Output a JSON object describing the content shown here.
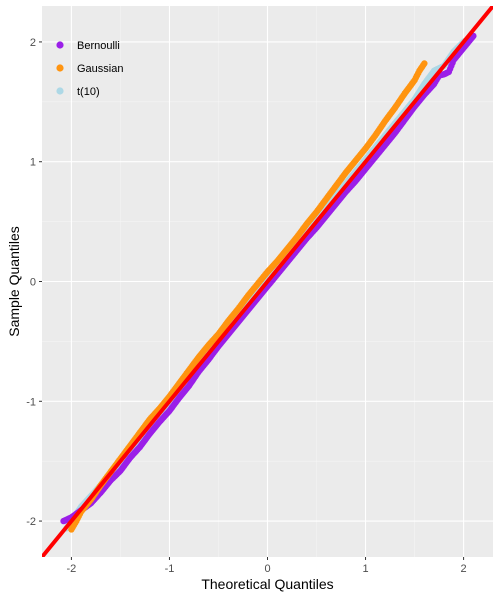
{
  "chart_data": {
    "type": "scatter",
    "title": "",
    "xlabel": "Theoretical Quantiles",
    "ylabel": "Sample Quantiles",
    "xlim": [
      -2.3,
      2.3
    ],
    "ylim": [
      -2.3,
      2.3
    ],
    "x_ticks": [
      -2,
      -1,
      0,
      1,
      2
    ],
    "y_ticks": [
      -2,
      -1,
      0,
      1,
      2
    ],
    "x_tick_labels": [
      "-2",
      "-1",
      "0",
      "1",
      "2"
    ],
    "y_tick_labels": [
      "-2",
      "-1",
      "0",
      "1",
      "2"
    ],
    "grid": true,
    "legend_position": "top-left",
    "reference_line": {
      "slope": 1,
      "intercept": 0,
      "color": "#ff0000"
    },
    "series": [
      {
        "name": "Bernoulli",
        "color": "#9b1fe8",
        "points": [
          [
            -2.08,
            -2.0
          ],
          [
            -2.0,
            -1.97
          ],
          [
            -1.9,
            -1.91
          ],
          [
            -1.8,
            -1.85
          ],
          [
            -1.7,
            -1.76
          ],
          [
            -1.6,
            -1.66
          ],
          [
            -1.5,
            -1.58
          ],
          [
            -1.4,
            -1.47
          ],
          [
            -1.3,
            -1.38
          ],
          [
            -1.2,
            -1.27
          ],
          [
            -1.1,
            -1.17
          ],
          [
            -1.0,
            -1.08
          ],
          [
            -0.9,
            -0.97
          ],
          [
            -0.8,
            -0.87
          ],
          [
            -0.7,
            -0.75
          ],
          [
            -0.6,
            -0.65
          ],
          [
            -0.5,
            -0.54
          ],
          [
            -0.4,
            -0.44
          ],
          [
            -0.3,
            -0.34
          ],
          [
            -0.2,
            -0.24
          ],
          [
            -0.1,
            -0.14
          ],
          [
            0.0,
            -0.04
          ],
          [
            0.1,
            0.06
          ],
          [
            0.2,
            0.16
          ],
          [
            0.3,
            0.26
          ],
          [
            0.4,
            0.36
          ],
          [
            0.5,
            0.45
          ],
          [
            0.6,
            0.55
          ],
          [
            0.7,
            0.65
          ],
          [
            0.8,
            0.75
          ],
          [
            0.9,
            0.84
          ],
          [
            1.0,
            0.94
          ],
          [
            1.1,
            1.04
          ],
          [
            1.2,
            1.14
          ],
          [
            1.3,
            1.24
          ],
          [
            1.4,
            1.35
          ],
          [
            1.5,
            1.46
          ],
          [
            1.6,
            1.56
          ],
          [
            1.7,
            1.65
          ],
          [
            1.75,
            1.72
          ],
          [
            1.8,
            1.73
          ],
          [
            1.85,
            1.75
          ],
          [
            1.9,
            1.85
          ],
          [
            1.95,
            1.9
          ],
          [
            2.0,
            1.95
          ],
          [
            2.1,
            2.05
          ]
        ]
      },
      {
        "name": "Gaussian",
        "color": "#ff9410",
        "points": [
          [
            -2.0,
            -2.07
          ],
          [
            -1.95,
            -2.0
          ],
          [
            -1.9,
            -1.92
          ],
          [
            -1.8,
            -1.82
          ],
          [
            -1.7,
            -1.7
          ],
          [
            -1.6,
            -1.59
          ],
          [
            -1.5,
            -1.48
          ],
          [
            -1.4,
            -1.37
          ],
          [
            -1.3,
            -1.26
          ],
          [
            -1.2,
            -1.15
          ],
          [
            -1.1,
            -1.06
          ],
          [
            -1.0,
            -0.96
          ],
          [
            -0.9,
            -0.85
          ],
          [
            -0.8,
            -0.74
          ],
          [
            -0.7,
            -0.63
          ],
          [
            -0.6,
            -0.53
          ],
          [
            -0.5,
            -0.44
          ],
          [
            -0.4,
            -0.33
          ],
          [
            -0.3,
            -0.23
          ],
          [
            -0.2,
            -0.12
          ],
          [
            -0.1,
            -0.02
          ],
          [
            0.0,
            0.08
          ],
          [
            0.1,
            0.17
          ],
          [
            0.2,
            0.27
          ],
          [
            0.3,
            0.37
          ],
          [
            0.4,
            0.48
          ],
          [
            0.5,
            0.58
          ],
          [
            0.6,
            0.69
          ],
          [
            0.7,
            0.8
          ],
          [
            0.8,
            0.91
          ],
          [
            0.9,
            1.01
          ],
          [
            1.0,
            1.11
          ],
          [
            1.1,
            1.22
          ],
          [
            1.2,
            1.34
          ],
          [
            1.3,
            1.45
          ],
          [
            1.4,
            1.57
          ],
          [
            1.5,
            1.68
          ],
          [
            1.55,
            1.76
          ],
          [
            1.6,
            1.82
          ]
        ]
      },
      {
        "name": "t(10)",
        "color": "#add8e6",
        "points": [
          [
            -2.05,
            -2.06
          ],
          [
            -1.9,
            -1.88
          ],
          [
            -1.7,
            -1.7
          ],
          [
            -1.5,
            -1.5
          ],
          [
            -1.3,
            -1.3
          ],
          [
            -1.1,
            -1.1
          ],
          [
            -0.9,
            -0.89
          ],
          [
            -0.7,
            -0.69
          ],
          [
            -0.5,
            -0.49
          ],
          [
            -0.3,
            -0.28
          ],
          [
            -0.1,
            -0.08
          ],
          [
            0.1,
            0.12
          ],
          [
            0.3,
            0.32
          ],
          [
            0.5,
            0.52
          ],
          [
            0.7,
            0.72
          ],
          [
            0.9,
            0.92
          ],
          [
            1.1,
            1.12
          ],
          [
            1.3,
            1.32
          ],
          [
            1.5,
            1.52
          ],
          [
            1.6,
            1.65
          ],
          [
            1.7,
            1.76
          ],
          [
            1.8,
            1.8
          ],
          [
            1.9,
            1.92
          ],
          [
            2.0,
            2.0
          ],
          [
            2.08,
            2.04
          ]
        ]
      }
    ]
  }
}
